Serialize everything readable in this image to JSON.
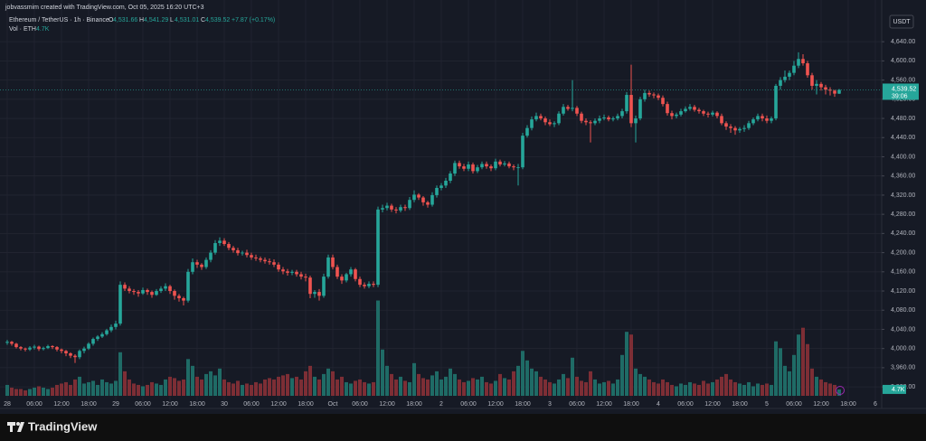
{
  "header": {
    "credit": "jobvassmim created with TradingView.com, Oct 05, 2025 16:20 UTC+3",
    "symbol": "Ethereum / TetherUS · 1h · Binance",
    "ohlc": [
      {
        "key": "O",
        "value": "4,531.66"
      },
      {
        "key": "H",
        "value": "4,541.29"
      },
      {
        "key": "L",
        "value": "4,531.01"
      },
      {
        "key": "C",
        "value": "4,539.52"
      }
    ],
    "change": "+7.87 (+0.17%)",
    "volume_key": "Vol · ETH",
    "volume_value": "4.7K",
    "currency": "USDT",
    "logo": "TradingView"
  },
  "chart_data": {
    "type": "candlestick",
    "up_color": "#26a69a",
    "down_color": "#ef5350",
    "volume_up_color": "#1f6b66",
    "volume_down_color": "#7d2e35",
    "grid": true,
    "xlim": [
      -1.6,
      193.4
    ],
    "ylim": [
      3875,
      4727
    ],
    "volume_ylim": [
      0,
      300
    ],
    "price_tag": {
      "label": "4,539.52",
      "countdown": "39:06"
    },
    "volume_tag": "4.7K",
    "xticks": [
      {
        "value": 0,
        "label": "28"
      },
      {
        "value": 6,
        "label": "06:00"
      },
      {
        "value": 12,
        "label": "12:00"
      },
      {
        "value": 18,
        "label": "18:00"
      },
      {
        "value": 24,
        "label": "29"
      },
      {
        "value": 30,
        "label": "06:00"
      },
      {
        "value": 36,
        "label": "12:00"
      },
      {
        "value": 42,
        "label": "18:00"
      },
      {
        "value": 48,
        "label": "30"
      },
      {
        "value": 54,
        "label": "06:00"
      },
      {
        "value": 60,
        "label": "12:00"
      },
      {
        "value": 66,
        "label": "18:00"
      },
      {
        "value": 72,
        "label": "Oct"
      },
      {
        "value": 78,
        "label": "06:00"
      },
      {
        "value": 84,
        "label": "12:00"
      },
      {
        "value": 90,
        "label": "18:00"
      },
      {
        "value": 96,
        "label": "2"
      },
      {
        "value": 102,
        "label": "06:00"
      },
      {
        "value": 108,
        "label": "12:00"
      },
      {
        "value": 114,
        "label": "18:00"
      },
      {
        "value": 120,
        "label": "3"
      },
      {
        "value": 126,
        "label": "06:00"
      },
      {
        "value": 132,
        "label": "12:00"
      },
      {
        "value": 138,
        "label": "18:00"
      },
      {
        "value": 144,
        "label": "4"
      },
      {
        "value": 150,
        "label": "06:00"
      },
      {
        "value": 156,
        "label": "12:00"
      },
      {
        "value": 162,
        "label": "18:00"
      },
      {
        "value": 168,
        "label": "5"
      },
      {
        "value": 174,
        "label": "06:00"
      },
      {
        "value": 180,
        "label": "12:00"
      },
      {
        "value": 186,
        "label": "18:00"
      },
      {
        "value": 192,
        "label": "6"
      }
    ],
    "yticks": [
      {
        "value": 3920,
        "label": "3,920.00"
      },
      {
        "value": 3960,
        "label": "3,960.00"
      },
      {
        "value": 4000,
        "label": "4,000.00"
      },
      {
        "value": 4040,
        "label": "4,040.00"
      },
      {
        "value": 4080,
        "label": "4,080.00"
      },
      {
        "value": 4120,
        "label": "4,120.00"
      },
      {
        "value": 4160,
        "label": "4,160.00"
      },
      {
        "value": 4200,
        "label": "4,200.00"
      },
      {
        "value": 4240,
        "label": "4,240.00"
      },
      {
        "value": 4280,
        "label": "4,280.00"
      },
      {
        "value": 4320,
        "label": "4,320.00"
      },
      {
        "value": 4360,
        "label": "4,360.00"
      },
      {
        "value": 4400,
        "label": "4,400.00"
      },
      {
        "value": 4440,
        "label": "4,440.00"
      },
      {
        "value": 4480,
        "label": "4,480.00"
      },
      {
        "value": 4520,
        "label": "4,520.00"
      },
      {
        "value": 4560,
        "label": "4,560.00"
      },
      {
        "value": 4600,
        "label": "4,600.00"
      },
      {
        "value": 4640,
        "label": "4,640.00"
      }
    ],
    "open": [
      4012,
      4014,
      4010,
      4003,
      4000,
      3998,
      4002,
      4004,
      3999,
      4001,
      4005,
      4003,
      3998,
      3995,
      3990,
      3985,
      3982,
      3995,
      4000,
      4010,
      4020,
      4025,
      4030,
      4038,
      4045,
      4052,
      4133,
      4125,
      4120,
      4118,
      4115,
      4122,
      4118,
      4112,
      4120,
      4125,
      4130,
      4120,
      4110,
      4105,
      4100,
      4160,
      4180,
      4175,
      4170,
      4185,
      4200,
      4220,
      4225,
      4218,
      4210,
      4205,
      4199,
      4200,
      4195,
      4190,
      4188,
      4185,
      4182,
      4180,
      4175,
      4165,
      4161,
      4158,
      4160,
      4155,
      4150,
      4148,
      4114,
      4118,
      4110,
      4150,
      4190,
      4170,
      4150,
      4142,
      4155,
      4165,
      4145,
      4133,
      4130,
      4135,
      4133,
      4290,
      4293,
      4298,
      4290,
      4288,
      4295,
      4293,
      4310,
      4321,
      4315,
      4305,
      4300,
      4320,
      4335,
      4340,
      4350,
      4365,
      4387,
      4380,
      4375,
      4384,
      4370,
      4378,
      4385,
      4380,
      4376,
      4390,
      4384,
      4386,
      4380,
      4378,
      4378,
      4444,
      4460,
      4478,
      4485,
      4480,
      4472,
      4468,
      4470,
      4490,
      4504,
      4500,
      4502,
      4490,
      4475,
      4472,
      4470,
      4475,
      4480,
      4482,
      4478,
      4480,
      4485,
      4495,
      4529,
      4470,
      4480,
      4520,
      4533,
      4530,
      4528,
      4523,
      4510,
      4491,
      4485,
      4488,
      4495,
      4500,
      4504,
      4498,
      4495,
      4490,
      4488,
      4492,
      4485,
      4470,
      4463,
      4460,
      4455,
      4458,
      4460,
      4470,
      4478,
      4485,
      4480,
      4475,
      4480,
      4548,
      4560,
      4567,
      4575,
      4590,
      4604,
      4595,
      4570,
      4548,
      4552,
      4545,
      4540,
      4538,
      4531.66
    ],
    "high": [
      4018,
      4016,
      4012,
      4005,
      4002,
      4005,
      4008,
      4006,
      4004,
      4008,
      4007,
      4005,
      4000,
      3997,
      3992,
      3988,
      3998,
      4004,
      4013,
      4023,
      4028,
      4034,
      4041,
      4050,
      4058,
      4140,
      4138,
      4130,
      4124,
      4122,
      4127,
      4125,
      4121,
      4124,
      4130,
      4136,
      4133,
      4123,
      4114,
      4108,
      4166,
      4188,
      4185,
      4178,
      4190,
      4205,
      4226,
      4232,
      4230,
      4222,
      4214,
      4210,
      4204,
      4206,
      4200,
      4196,
      4192,
      4190,
      4188,
      4186,
      4180,
      4170,
      4166,
      4164,
      4164,
      4160,
      4156,
      4152,
      4122,
      4124,
      4156,
      4196,
      4196,
      4175,
      4155,
      4158,
      4170,
      4168,
      4150,
      4138,
      4140,
      4140,
      4296,
      4300,
      4304,
      4302,
      4295,
      4300,
      4300,
      4316,
      4330,
      4324,
      4318,
      4308,
      4326,
      4340,
      4345,
      4356,
      4370,
      4392,
      4392,
      4385,
      4390,
      4388,
      4383,
      4390,
      4390,
      4384,
      4396,
      4394,
      4391,
      4390,
      4384,
      4385,
      4450,
      4466,
      4484,
      4492,
      4490,
      4484,
      4478,
      4474,
      4495,
      4510,
      4508,
      4560,
      4506,
      4494,
      4480,
      4476,
      4480,
      4486,
      4488,
      4486,
      4484,
      4490,
      4500,
      4535,
      4592,
      4486,
      4525,
      4540,
      4538,
      4534,
      4532,
      4528,
      4515,
      4496,
      4492,
      4500,
      4505,
      4510,
      4508,
      4502,
      4498,
      4494,
      4496,
      4495,
      4490,
      4474,
      4468,
      4464,
      4462,
      4466,
      4475,
      4482,
      4490,
      4490,
      4486,
      4484,
      4552,
      4566,
      4580,
      4580,
      4600,
      4618,
      4614,
      4600,
      4575,
      4560,
      4556,
      4550,
      4545,
      4540,
      4541.29
    ],
    "low": [
      4008,
      4006,
      4000,
      3996,
      3994,
      3995,
      3998,
      3995,
      3996,
      3999,
      3999,
      3994,
      3990,
      3984,
      3980,
      3970,
      3978,
      3990,
      3997,
      4006,
      4016,
      4022,
      4027,
      4034,
      4040,
      4048,
      4120,
      4115,
      4112,
      4108,
      4112,
      4112,
      4106,
      4110,
      4116,
      4120,
      4114,
      4102,
      4098,
      4090,
      4096,
      4155,
      4168,
      4164,
      4166,
      4180,
      4196,
      4214,
      4214,
      4205,
      4200,
      4194,
      4194,
      4190,
      4185,
      4183,
      4180,
      4177,
      4175,
      4170,
      4160,
      4155,
      4152,
      4153,
      4150,
      4144,
      4140,
      4105,
      4106,
      4100,
      4106,
      4146,
      4165,
      4145,
      4135,
      4138,
      4150,
      4140,
      4128,
      4125,
      4126,
      4128,
      4128,
      4284,
      4288,
      4285,
      4282,
      4284,
      4287,
      4289,
      4305,
      4310,
      4298,
      4294,
      4296,
      4315,
      4330,
      4335,
      4345,
      4360,
      4375,
      4370,
      4370,
      4365,
      4366,
      4374,
      4375,
      4370,
      4372,
      4380,
      4380,
      4376,
      4372,
      4340,
      4374,
      4440,
      4455,
      4474,
      4476,
      4466,
      4464,
      4462,
      4466,
      4486,
      4496,
      4495,
      4485,
      4470,
      4466,
      4430,
      4466,
      4470,
      4476,
      4474,
      4474,
      4476,
      4480,
      4490,
      4462,
      4430,
      4476,
      4515,
      4525,
      4522,
      4518,
      4505,
      4486,
      4478,
      4480,
      4484,
      4492,
      4496,
      4494,
      4490,
      4485,
      4482,
      4484,
      4480,
      4466,
      4456,
      4450,
      4446,
      4450,
      4452,
      4456,
      4466,
      4474,
      4474,
      4470,
      4470,
      4476,
      4540,
      4555,
      4560,
      4570,
      4585,
      4590,
      4565,
      4540,
      4530,
      4538,
      4530,
      4528,
      4525,
      4531.01
    ],
    "close": [
      4014,
      4010,
      4003,
      4000,
      3998,
      4002,
      4004,
      3999,
      4001,
      4005,
      4003,
      3998,
      3995,
      3990,
      3985,
      3982,
      3995,
      4000,
      4010,
      4020,
      4025,
      4030,
      4038,
      4045,
      4052,
      4133,
      4125,
      4120,
      4118,
      4115,
      4122,
      4118,
      4112,
      4120,
      4125,
      4130,
      4120,
      4110,
      4105,
      4100,
      4160,
      4180,
      4175,
      4170,
      4185,
      4200,
      4220,
      4225,
      4218,
      4210,
      4205,
      4199,
      4200,
      4195,
      4190,
      4188,
      4185,
      4182,
      4180,
      4175,
      4165,
      4161,
      4158,
      4160,
      4155,
      4150,
      4148,
      4114,
      4118,
      4110,
      4150,
      4190,
      4170,
      4150,
      4142,
      4155,
      4165,
      4145,
      4133,
      4130,
      4135,
      4133,
      4290,
      4293,
      4298,
      4290,
      4288,
      4295,
      4293,
      4310,
      4321,
      4315,
      4305,
      4300,
      4320,
      4335,
      4340,
      4350,
      4365,
      4387,
      4380,
      4375,
      4384,
      4370,
      4378,
      4385,
      4380,
      4376,
      4390,
      4384,
      4386,
      4380,
      4378,
      4378,
      4444,
      4460,
      4478,
      4485,
      4480,
      4472,
      4468,
      4470,
      4490,
      4504,
      4500,
      4502,
      4490,
      4475,
      4472,
      4470,
      4475,
      4480,
      4482,
      4478,
      4480,
      4485,
      4495,
      4529,
      4470,
      4480,
      4520,
      4533,
      4530,
      4528,
      4523,
      4510,
      4491,
      4485,
      4488,
      4495,
      4500,
      4504,
      4498,
      4495,
      4490,
      4488,
      4492,
      4485,
      4470,
      4463,
      4460,
      4455,
      4458,
      4460,
      4470,
      4478,
      4485,
      4480,
      4475,
      4480,
      4548,
      4560,
      4567,
      4575,
      4590,
      4604,
      4595,
      4570,
      4548,
      4552,
      4545,
      4540,
      4538,
      4531.66,
      4539.52
    ],
    "volume": [
      8,
      6,
      5,
      5,
      4,
      5,
      6,
      7,
      6,
      5,
      6,
      8,
      9,
      10,
      8,
      12,
      14,
      9,
      10,
      11,
      8,
      12,
      10,
      9,
      11,
      32,
      18,
      12,
      9,
      8,
      7,
      8,
      10,
      9,
      8,
      12,
      14,
      13,
      11,
      12,
      27,
      22,
      14,
      12,
      16,
      18,
      15,
      20,
      12,
      10,
      9,
      11,
      8,
      9,
      8,
      10,
      9,
      12,
      13,
      12,
      14,
      15,
      16,
      13,
      14,
      12,
      18,
      22,
      14,
      12,
      16,
      20,
      18,
      12,
      14,
      10,
      9,
      11,
      12,
      10,
      9,
      10,
      70,
      34,
      22,
      16,
      12,
      14,
      11,
      10,
      24,
      16,
      13,
      12,
      15,
      18,
      12,
      14,
      20,
      16,
      12,
      10,
      11,
      13,
      12,
      14,
      10,
      9,
      11,
      16,
      13,
      12,
      18,
      22,
      33,
      26,
      20,
      18,
      14,
      12,
      10,
      9,
      12,
      16,
      13,
      28,
      14,
      11,
      10,
      18,
      12,
      9,
      10,
      11,
      9,
      12,
      30,
      47,
      45,
      20,
      16,
      14,
      12,
      10,
      9,
      12,
      10,
      8,
      7,
      9,
      8,
      10,
      9,
      8,
      11,
      9,
      10,
      12,
      14,
      16,
      12,
      10,
      9,
      8,
      10,
      7,
      9,
      8,
      9,
      8,
      40,
      35,
      22,
      18,
      30,
      45,
      50,
      38,
      20,
      14,
      12,
      10,
      9,
      8,
      4.7
    ]
  }
}
